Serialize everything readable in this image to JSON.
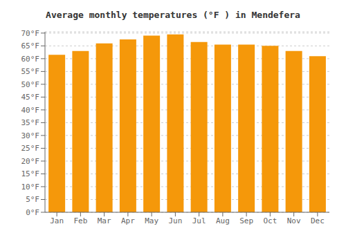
{
  "chart_data": {
    "type": "bar",
    "title": "Average monthly temperatures (°F ) in Mendefera",
    "categories": [
      "Jan",
      "Feb",
      "Mar",
      "Apr",
      "May",
      "Jun",
      "Jul",
      "Aug",
      "Sep",
      "Oct",
      "Nov",
      "Dec"
    ],
    "values": [
      61.5,
      63.0,
      66.0,
      67.5,
      69.0,
      69.5,
      66.5,
      65.5,
      65.5,
      65.0,
      63.0,
      61.0
    ],
    "color": "#F5980A",
    "ylim": [
      0,
      70.5
    ],
    "yticks": [
      {
        "value": 0,
        "label": "0°F"
      },
      {
        "value": 5,
        "label": "5°F"
      },
      {
        "value": 10,
        "label": "10°F"
      },
      {
        "value": 15,
        "label": "15°F"
      },
      {
        "value": 20,
        "label": "20°F"
      },
      {
        "value": 25,
        "label": "25°F"
      },
      {
        "value": 30,
        "label": "30°F"
      },
      {
        "value": 35,
        "label": "35°F"
      },
      {
        "value": 40,
        "label": "40°F"
      },
      {
        "value": 45,
        "label": "45°F"
      },
      {
        "value": 50,
        "label": "50°F"
      },
      {
        "value": 55,
        "label": "55°F"
      },
      {
        "value": 60,
        "label": "60°F"
      },
      {
        "value": 65,
        "label": "65°F"
      },
      {
        "value": 70,
        "label": "70°F"
      }
    ],
    "grid": true
  }
}
